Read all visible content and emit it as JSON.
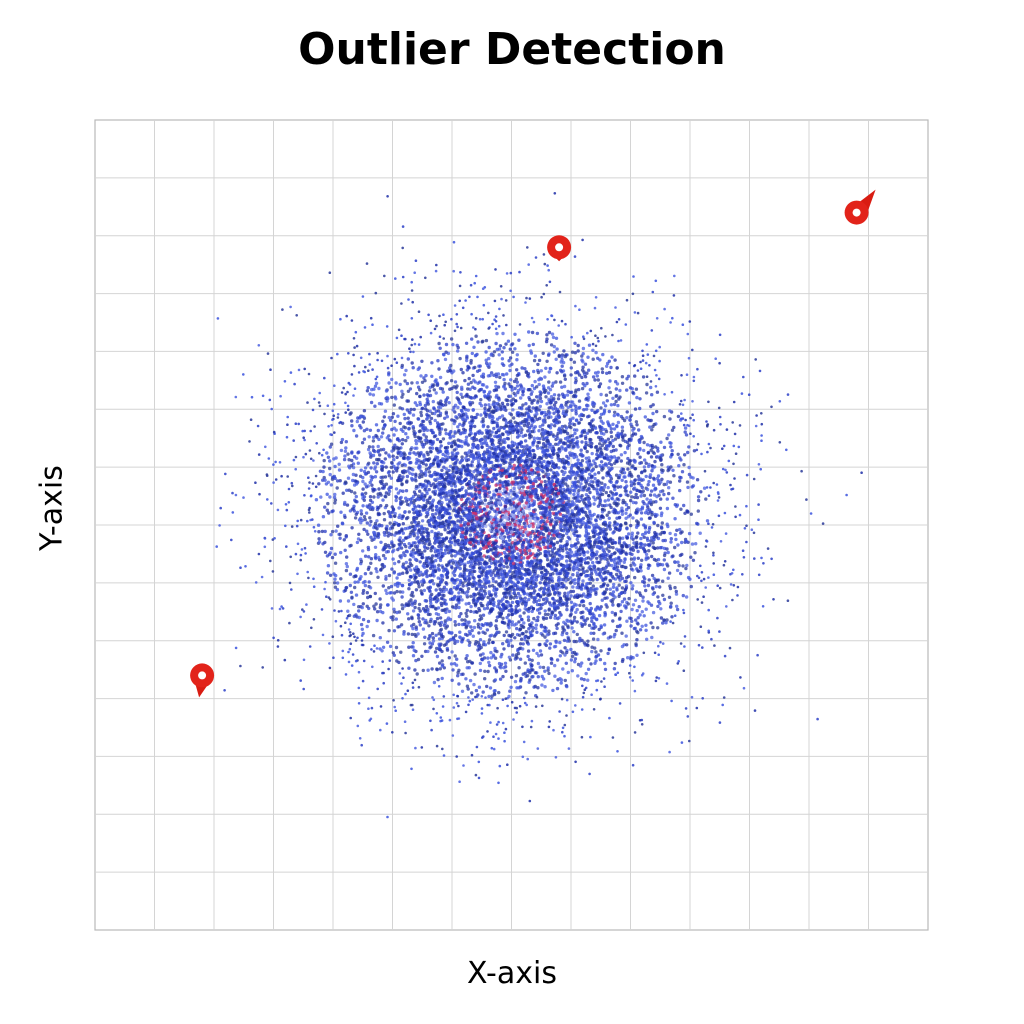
{
  "chart_data": {
    "type": "scatter",
    "title": "Outlier Detection",
    "xlabel": "X-axis",
    "ylabel": "Y-axis",
    "xlim": [
      0,
      14
    ],
    "ylim": [
      0,
      14
    ],
    "grid": true,
    "series": [
      {
        "role": "inliers",
        "distribution": "gaussian-cluster",
        "center": [
          7.0,
          7.2
        ],
        "spread": [
          1.5,
          1.45
        ],
        "count": 9000,
        "color": "#2b3fc8"
      },
      {
        "role": "outliers",
        "color": "#e2231a",
        "points": [
          {
            "x": 1.8,
            "y": 4.4
          },
          {
            "x": 7.8,
            "y": 11.8
          },
          {
            "x": 12.8,
            "y": 12.4
          }
        ]
      }
    ]
  }
}
